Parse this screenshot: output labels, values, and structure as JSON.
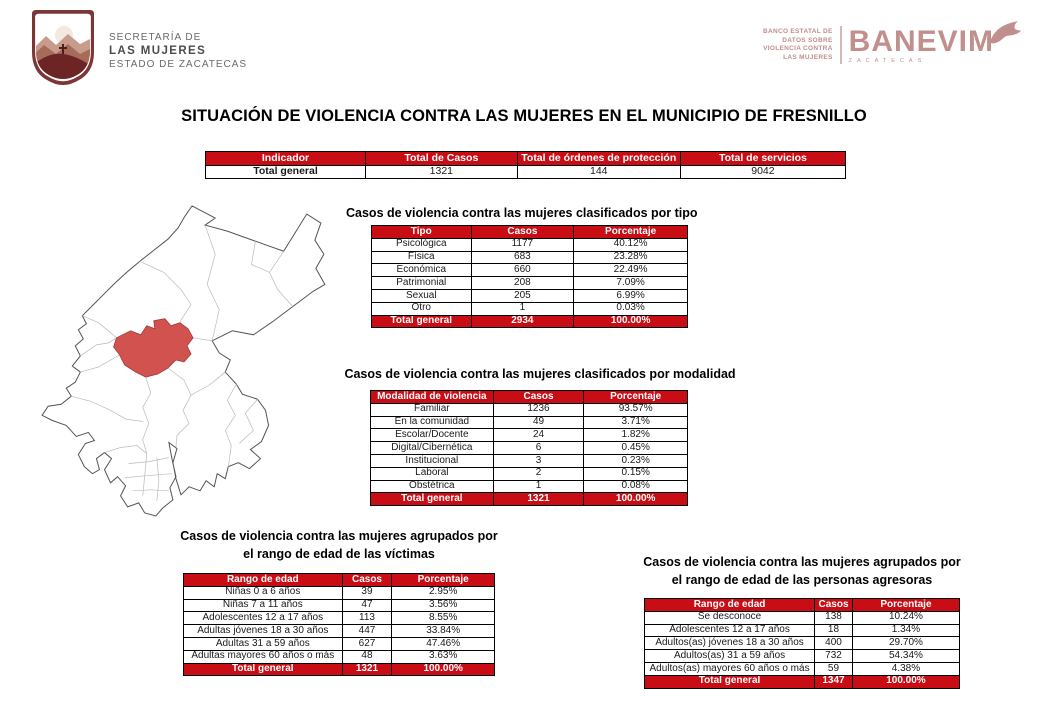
{
  "logos": {
    "secretaria": {
      "line1": "SECRETARÍA DE",
      "line2": "LAS MUJERES",
      "line3": "ESTADO DE ZACATECAS"
    },
    "banevim": {
      "tagline1": "BANCO ESTATAL DE",
      "tagline2": "DATOS SOBRE",
      "tagline3": "VIOLENCIA CONTRA",
      "tagline4": "LAS MUJERES",
      "brand": "BANEVIM",
      "location": "ZACATECAS"
    }
  },
  "page_title": "SITUACIÓN DE VIOLENCIA CONTRA LAS MUJERES EN EL MUNICIPIO DE FRESNILLO",
  "summary": {
    "headers": [
      "Indicador",
      "Total de Casos",
      "Total de órdenes de protección",
      "Total de servicios"
    ],
    "rows": [
      [
        "Total general",
        "1321",
        "144",
        "9042"
      ]
    ]
  },
  "tables": {
    "tipo": {
      "title": "Casos de violencia contra las mujeres clasificados por tipo",
      "headers": [
        "Tipo",
        "Casos",
        "Porcentaje"
      ],
      "rows": [
        [
          "Psicológica",
          "1177",
          "40.12%"
        ],
        [
          "Física",
          "683",
          "23.28%"
        ],
        [
          "Económica",
          "660",
          "22.49%"
        ],
        [
          "Patrimonial",
          "208",
          "7.09%"
        ],
        [
          "Sexual",
          "205",
          "6.99%"
        ],
        [
          "Otro",
          "1",
          "0.03%"
        ]
      ],
      "total": [
        "Total general",
        "2934",
        "100.00%"
      ]
    },
    "modalidad": {
      "title": "Casos de violencia contra las mujeres clasificados por modalidad",
      "headers": [
        "Modalidad de violencia",
        "Casos",
        "Porcentaje"
      ],
      "rows": [
        [
          "Familiar",
          "1236",
          "93.57%"
        ],
        [
          "En la comunidad",
          "49",
          "3.71%"
        ],
        [
          "Escolar/Docente",
          "24",
          "1.82%"
        ],
        [
          "Digital/Cibernética",
          "6",
          "0.45%"
        ],
        [
          "Institucional",
          "3",
          "0.23%"
        ],
        [
          "Laboral",
          "2",
          "0.15%"
        ],
        [
          "Obstétrica",
          "1",
          "0.08%"
        ]
      ],
      "total": [
        "Total general",
        "1321",
        "100.00%"
      ]
    },
    "victimas": {
      "title_line1": "Casos de violencia contra las mujeres agrupados por",
      "title_line2": "el rango de edad de las víctimas",
      "headers": [
        "Rango de edad",
        "Casos",
        "Porcentaje"
      ],
      "rows": [
        [
          "Niñas 0 a 6 años",
          "39",
          "2.95%"
        ],
        [
          "Niñas 7 a 11 años",
          "47",
          "3.56%"
        ],
        [
          "Adolescentes 12 a 17 años",
          "113",
          "8.55%"
        ],
        [
          "Adultas jóvenes 18 a 30 años",
          "447",
          "33.84%"
        ],
        [
          "Adultas 31 a 59 años",
          "627",
          "47.46%"
        ],
        [
          "Adultas mayores 60 años o más",
          "48",
          "3.63%"
        ]
      ],
      "total": [
        "Total general",
        "1321",
        "100.00%"
      ]
    },
    "agresoras": {
      "title_line1": "Casos de violencia contra las mujeres agrupados por",
      "title_line2": "el rango de edad de las personas agresoras",
      "headers": [
        "Rango de edad",
        "Casos",
        "Porcentaje"
      ],
      "rows": [
        [
          "Se desconoce",
          "138",
          "10.24%"
        ],
        [
          "Adolescentes 12 a 17 años",
          "18",
          "1.34%"
        ],
        [
          "Adultos(as) jóvenes 18 a 30 años",
          "400",
          "29.70%"
        ],
        [
          "Adultos(as) 31 a 59 años",
          "732",
          "54.34%"
        ],
        [
          "Adultos(as) mayores 60 años o más",
          "59",
          "4.38%"
        ]
      ],
      "total": [
        "Total general",
        "1347",
        "100.00%"
      ]
    }
  },
  "map": {
    "highlighted_municipality": "Fresnillo",
    "highlight_color": "#d25250"
  },
  "colors": {
    "table_header_red": "#c90d15",
    "logo_rose": "#c18f8c",
    "logo_maroon": "#7d3535",
    "map_outline": "#555555"
  }
}
